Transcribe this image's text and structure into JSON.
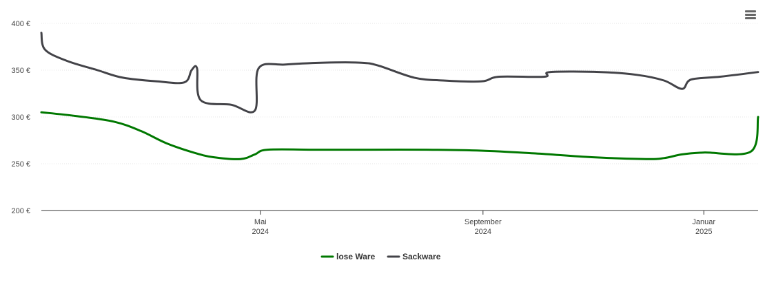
{
  "chart_data": {
    "type": "line",
    "title": "",
    "xlabel": "",
    "ylabel": "",
    "ylim": [
      200,
      400
    ],
    "y_ticks": [
      "200 €",
      "250 €",
      "300 €",
      "350 €",
      "400 €"
    ],
    "y_tick_values": [
      200,
      250,
      300,
      350,
      400
    ],
    "x_range": [
      "2024-01-01",
      "2025-01-31"
    ],
    "x_ticks": [
      {
        "date": "2024-05-01",
        "month": "Mai",
        "year": "2024"
      },
      {
        "date": "2024-09-01",
        "month": "September",
        "year": "2024"
      },
      {
        "date": "2025-01-01",
        "month": "Januar",
        "year": "2025"
      }
    ],
    "grid": true,
    "legend_position": "bottom-center",
    "series": [
      {
        "name": "lose Ware",
        "color": "#007800",
        "points": [
          [
            "2024-01-01",
            305
          ],
          [
            "2024-01-20",
            301
          ],
          [
            "2024-02-10",
            295
          ],
          [
            "2024-02-25",
            285
          ],
          [
            "2024-03-10",
            272
          ],
          [
            "2024-03-25",
            262
          ],
          [
            "2024-04-05",
            257
          ],
          [
            "2024-04-20",
            255
          ],
          [
            "2024-04-28",
            260
          ],
          [
            "2024-05-05",
            265
          ],
          [
            "2024-06-01",
            265
          ],
          [
            "2024-07-01",
            265
          ],
          [
            "2024-08-01",
            265
          ],
          [
            "2024-08-31",
            264
          ],
          [
            "2024-09-30",
            261
          ],
          [
            "2024-10-31",
            257
          ],
          [
            "2024-11-30",
            255
          ],
          [
            "2024-12-10",
            256
          ],
          [
            "2024-12-20",
            260
          ],
          [
            "2025-01-01",
            262
          ],
          [
            "2025-01-27",
            263
          ],
          [
            "2025-01-31",
            300
          ]
        ]
      },
      {
        "name": "Sackware",
        "color": "#434348",
        "points": [
          [
            "2024-01-01",
            390
          ],
          [
            "2024-01-03",
            372
          ],
          [
            "2024-01-15",
            360
          ],
          [
            "2024-02-01",
            350
          ],
          [
            "2024-02-15",
            342
          ],
          [
            "2024-03-05",
            338
          ],
          [
            "2024-03-20",
            337
          ],
          [
            "2024-03-24",
            350
          ],
          [
            "2024-03-27",
            352
          ],
          [
            "2024-03-29",
            318
          ],
          [
            "2024-04-15",
            313
          ],
          [
            "2024-04-28",
            307
          ],
          [
            "2024-04-30",
            352
          ],
          [
            "2024-05-15",
            356
          ],
          [
            "2024-06-05",
            358
          ],
          [
            "2024-06-25",
            358
          ],
          [
            "2024-07-05",
            355
          ],
          [
            "2024-07-25",
            342
          ],
          [
            "2024-08-10",
            339
          ],
          [
            "2024-08-31",
            338
          ],
          [
            "2024-09-10",
            343
          ],
          [
            "2024-10-05",
            343
          ],
          [
            "2024-10-08",
            348
          ],
          [
            "2024-11-05",
            348
          ],
          [
            "2024-11-25",
            345
          ],
          [
            "2024-12-10",
            339
          ],
          [
            "2024-12-20",
            330
          ],
          [
            "2024-12-25",
            340
          ],
          [
            "2025-01-10",
            343
          ],
          [
            "2025-01-31",
            348
          ]
        ]
      }
    ]
  }
}
